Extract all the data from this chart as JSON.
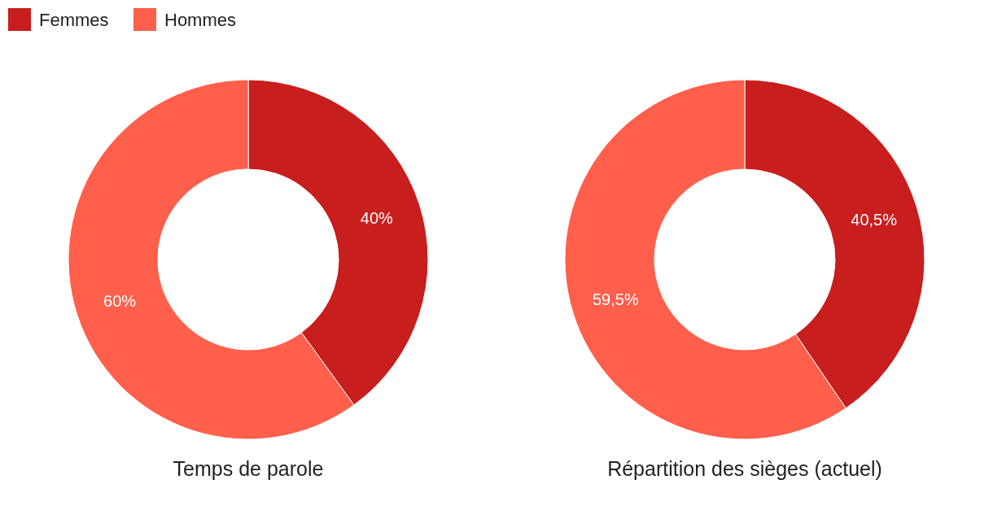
{
  "chart_data": [
    {
      "type": "donut",
      "title": "Temps de parole",
      "categories": [
        "Femmes",
        "Hommes"
      ],
      "values": [
        40,
        60
      ],
      "colors": [
        "#c81e1e",
        "#ff5f4b"
      ],
      "value_labels": [
        "40%",
        "60%"
      ],
      "legend": "top left"
    },
    {
      "type": "donut",
      "title": "Répartition des sièges (actuel)",
      "categories": [
        null,
        null
      ],
      "values": [
        40.5,
        59.5
      ],
      "colors": [
        "#c81e1e",
        "#ff5f4b"
      ],
      "value_labels": [
        "40,5%",
        "59,5%"
      ]
    }
  ]
}
